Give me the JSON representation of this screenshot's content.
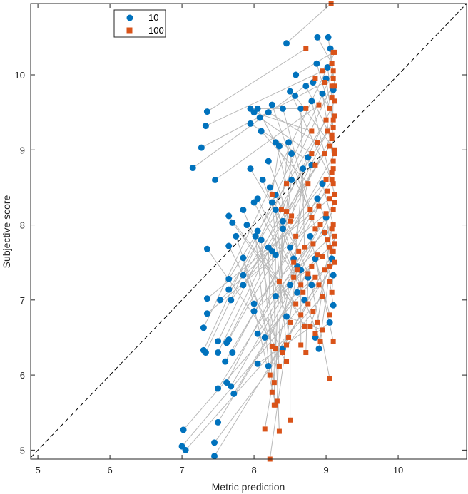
{
  "chart_data": {
    "type": "scatter",
    "xlabel": "Metric prediction",
    "ylabel": "Subjective score",
    "xlim": [
      4.9,
      10.95
    ],
    "ylim": [
      4.88,
      10.95
    ],
    "xticks": [
      5,
      6,
      7,
      8,
      9,
      10
    ],
    "yticks": [
      5,
      6,
      7,
      8,
      9,
      10
    ],
    "grid": false,
    "legend_position": "top-left",
    "reference_line": "dashed diagonal y = x",
    "pair_line_color": "#b8b8b8",
    "series": [
      {
        "name": "10",
        "marker": "circle",
        "color": "#0072BD",
        "points": [
          [
            8.45,
            10.42
          ],
          [
            8.58,
            10.0
          ],
          [
            8.88,
            10.5
          ],
          [
            9.03,
            10.5
          ],
          [
            9.06,
            10.35
          ],
          [
            9.02,
            10.1
          ],
          [
            8.87,
            10.15
          ],
          [
            8.82,
            9.9
          ],
          [
            9.0,
            9.95
          ],
          [
            8.72,
            9.85
          ],
          [
            8.57,
            9.72
          ],
          [
            8.95,
            9.75
          ],
          [
            9.1,
            9.8
          ],
          [
            8.5,
            9.78
          ],
          [
            8.8,
            9.65
          ],
          [
            7.35,
            9.51
          ],
          [
            7.33,
            9.32
          ],
          [
            7.27,
            9.03
          ],
          [
            7.15,
            8.76
          ],
          [
            7.46,
            8.6
          ],
          [
            7.95,
            9.55
          ],
          [
            8.0,
            9.5
          ],
          [
            8.2,
            9.5
          ],
          [
            8.08,
            9.43
          ],
          [
            7.95,
            9.35
          ],
          [
            8.1,
            9.25
          ],
          [
            8.05,
            9.55
          ],
          [
            8.25,
            9.6
          ],
          [
            8.4,
            9.55
          ],
          [
            8.65,
            9.55
          ],
          [
            8.3,
            9.1
          ],
          [
            8.35,
            9.05
          ],
          [
            8.48,
            9.1
          ],
          [
            8.52,
            8.95
          ],
          [
            8.2,
            8.85
          ],
          [
            8.75,
            8.9
          ],
          [
            8.8,
            8.8
          ],
          [
            7.95,
            8.75
          ],
          [
            8.12,
            8.6
          ],
          [
            8.22,
            8.5
          ],
          [
            8.3,
            8.4
          ],
          [
            8.05,
            8.35
          ],
          [
            8.0,
            8.3
          ],
          [
            8.52,
            8.6
          ],
          [
            8.68,
            8.75
          ],
          [
            7.65,
            8.12
          ],
          [
            7.7,
            8.03
          ],
          [
            7.85,
            8.2
          ],
          [
            7.9,
            8.0
          ],
          [
            8.3,
            8.2
          ],
          [
            8.25,
            8.3
          ],
          [
            8.4,
            8.05
          ],
          [
            7.75,
            7.85
          ],
          [
            7.65,
            7.72
          ],
          [
            7.35,
            7.68
          ],
          [
            8.05,
            7.92
          ],
          [
            8.02,
            7.85
          ],
          [
            8.1,
            7.8
          ],
          [
            8.2,
            7.7
          ],
          [
            8.4,
            7.95
          ],
          [
            7.85,
            7.56
          ],
          [
            8.3,
            7.6
          ],
          [
            8.5,
            7.7
          ],
          [
            8.55,
            7.55
          ],
          [
            8.25,
            7.65
          ],
          [
            8.6,
            7.45
          ],
          [
            8.65,
            7.4
          ],
          [
            8.75,
            7.3
          ],
          [
            8.8,
            7.2
          ],
          [
            8.85,
            7.55
          ],
          [
            8.78,
            7.85
          ],
          [
            8.98,
            7.9
          ],
          [
            9.0,
            8.1
          ],
          [
            8.88,
            8.35
          ],
          [
            8.95,
            8.55
          ],
          [
            7.65,
            7.28
          ],
          [
            7.65,
            7.14
          ],
          [
            7.85,
            7.33
          ],
          [
            7.85,
            7.2
          ],
          [
            7.68,
            7.0
          ],
          [
            7.53,
            7.0
          ],
          [
            7.35,
            7.02
          ],
          [
            7.35,
            6.82
          ],
          [
            8.0,
            6.95
          ],
          [
            8.0,
            6.85
          ],
          [
            8.3,
            7.05
          ],
          [
            8.5,
            7.2
          ],
          [
            8.6,
            7.1
          ],
          [
            9.1,
            6.93
          ],
          [
            9.1,
            7.33
          ],
          [
            7.3,
            6.63
          ],
          [
            7.3,
            6.33
          ],
          [
            7.33,
            6.3
          ],
          [
            7.5,
            6.45
          ],
          [
            7.5,
            6.3
          ],
          [
            7.62,
            6.43
          ],
          [
            7.65,
            6.47
          ],
          [
            7.7,
            6.3
          ],
          [
            7.6,
            6.18
          ],
          [
            8.05,
            6.55
          ],
          [
            8.15,
            6.5
          ],
          [
            8.85,
            6.5
          ],
          [
            8.9,
            6.35
          ],
          [
            8.4,
            6.35
          ],
          [
            8.2,
            6.12
          ],
          [
            7.62,
            5.9
          ],
          [
            7.5,
            5.82
          ],
          [
            7.68,
            5.85
          ],
          [
            7.72,
            5.75
          ],
          [
            7.5,
            5.37
          ],
          [
            7.02,
            5.27
          ],
          [
            7.0,
            5.05
          ],
          [
            7.05,
            5.0
          ],
          [
            7.45,
            4.92
          ],
          [
            7.45,
            5.1
          ],
          [
            8.05,
            6.15
          ],
          [
            8.45,
            6.78
          ],
          [
            8.7,
            7.0
          ],
          [
            9.05,
            6.7
          ],
          [
            9.08,
            7.55
          ]
        ]
      },
      {
        "name": "100",
        "marker": "square",
        "color": "#D95319",
        "points": [
          [
            9.07,
            10.95
          ],
          [
            9.1,
            10.3
          ],
          [
            9.08,
            10.15
          ],
          [
            9.1,
            9.95
          ],
          [
            9.12,
            9.85
          ],
          [
            9.08,
            9.7
          ],
          [
            9.05,
            9.55
          ],
          [
            9.12,
            9.45
          ],
          [
            9.1,
            9.3
          ],
          [
            9.08,
            9.15
          ],
          [
            9.12,
            9.0
          ],
          [
            9.1,
            8.85
          ],
          [
            9.08,
            8.7
          ],
          [
            9.1,
            8.55
          ],
          [
            9.12,
            8.4
          ],
          [
            8.72,
            10.35
          ],
          [
            8.95,
            10.05
          ],
          [
            8.98,
            9.9
          ],
          [
            8.85,
            9.95
          ],
          [
            8.9,
            9.6
          ],
          [
            8.72,
            9.55
          ],
          [
            8.8,
            9.25
          ],
          [
            8.88,
            9.1
          ],
          [
            8.8,
            8.95
          ],
          [
            8.85,
            8.8
          ],
          [
            8.75,
            8.55
          ],
          [
            8.78,
            8.2
          ],
          [
            8.8,
            8.1
          ],
          [
            8.85,
            7.95
          ],
          [
            8.7,
            7.7
          ],
          [
            8.45,
            8.55
          ],
          [
            8.25,
            8.4
          ],
          [
            8.38,
            8.2
          ],
          [
            8.45,
            8.18
          ],
          [
            8.5,
            8.05
          ],
          [
            8.52,
            8.12
          ],
          [
            8.58,
            7.85
          ],
          [
            8.62,
            7.65
          ],
          [
            8.55,
            7.5
          ],
          [
            8.6,
            7.4
          ],
          [
            8.75,
            7.35
          ],
          [
            8.65,
            7.2
          ],
          [
            8.68,
            7.1
          ],
          [
            8.35,
            7.25
          ],
          [
            8.55,
            7.3
          ],
          [
            8.58,
            6.95
          ],
          [
            8.65,
            6.8
          ],
          [
            8.5,
            6.7
          ],
          [
            8.7,
            6.65
          ],
          [
            8.48,
            6.5
          ],
          [
            8.45,
            6.4
          ],
          [
            8.3,
            6.35
          ],
          [
            8.25,
            6.38
          ],
          [
            8.4,
            6.3
          ],
          [
            8.45,
            6.18
          ],
          [
            8.35,
            6.12
          ],
          [
            8.22,
            6.0
          ],
          [
            8.28,
            5.9
          ],
          [
            8.25,
            5.77
          ],
          [
            8.32,
            5.65
          ],
          [
            8.3,
            5.6
          ],
          [
            8.28,
            5.6
          ],
          [
            8.5,
            5.4
          ],
          [
            8.15,
            5.28
          ],
          [
            8.35,
            5.25
          ],
          [
            8.22,
            4.88
          ],
          [
            8.65,
            6.4
          ],
          [
            8.72,
            6.3
          ],
          [
            9.05,
            5.95
          ],
          [
            9.1,
            6.45
          ],
          [
            9.05,
            6.8
          ],
          [
            9.05,
            7.45
          ],
          [
            9.08,
            7.65
          ],
          [
            9.12,
            7.75
          ],
          [
            9.1,
            8.0
          ],
          [
            9.0,
            9.4
          ],
          [
            9.02,
            9.25
          ],
          [
            9.05,
            9.05
          ],
          [
            8.98,
            8.95
          ],
          [
            9.0,
            8.6
          ],
          [
            9.02,
            8.45
          ],
          [
            9.05,
            8.35
          ],
          [
            9.0,
            8.15
          ],
          [
            8.98,
            7.9
          ],
          [
            9.02,
            7.8
          ],
          [
            9.05,
            7.7
          ],
          [
            8.95,
            7.58
          ],
          [
            8.98,
            7.4
          ],
          [
            9.05,
            7.25
          ],
          [
            9.08,
            7.1
          ],
          [
            9.12,
            10.3
          ],
          [
            9.1,
            10.05
          ],
          [
            9.08,
            9.85
          ],
          [
            9.12,
            9.65
          ],
          [
            9.1,
            9.4
          ],
          [
            9.08,
            9.2
          ],
          [
            9.12,
            8.95
          ],
          [
            9.1,
            8.75
          ],
          [
            9.08,
            8.6
          ],
          [
            9.12,
            8.3
          ],
          [
            9.1,
            8.2
          ],
          [
            9.08,
            7.95
          ],
          [
            9.12,
            7.85
          ],
          [
            9.1,
            7.65
          ],
          [
            9.12,
            7.5
          ],
          [
            8.9,
            8.25
          ],
          [
            8.92,
            8.0
          ],
          [
            8.82,
            7.75
          ],
          [
            8.88,
            7.6
          ],
          [
            8.8,
            7.45
          ],
          [
            8.85,
            7.3
          ],
          [
            8.9,
            7.2
          ],
          [
            8.95,
            7.05
          ],
          [
            8.75,
            6.95
          ],
          [
            8.82,
            6.85
          ],
          [
            8.88,
            6.7
          ],
          [
            8.95,
            6.6
          ],
          [
            8.92,
            6.45
          ],
          [
            8.85,
            6.55
          ],
          [
            8.78,
            6.65
          ]
        ]
      }
    ]
  }
}
